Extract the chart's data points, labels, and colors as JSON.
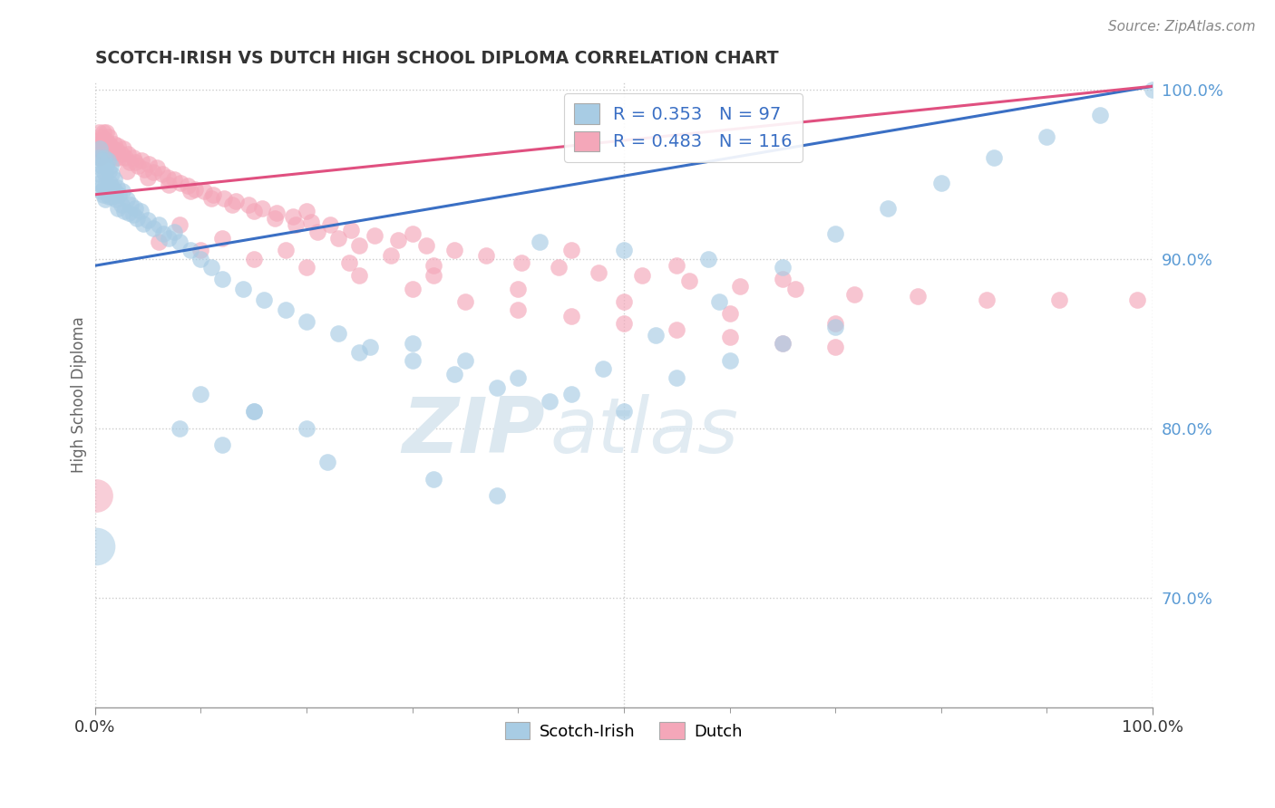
{
  "title": "SCOTCH-IRISH VS DUTCH HIGH SCHOOL DIPLOMA CORRELATION CHART",
  "source": "Source: ZipAtlas.com",
  "ylabel": "High School Diploma",
  "xlim": [
    0,
    1
  ],
  "ylim": [
    0.635,
    1.005
  ],
  "yticks": [
    0.7,
    0.8,
    0.9,
    1.0
  ],
  "ytick_labels": [
    "70.0%",
    "80.0%",
    "90.0%",
    "100.0%"
  ],
  "xtick_labels": [
    "0.0%",
    "100.0%"
  ],
  "legend_blue_R": "R = 0.353",
  "legend_blue_N": "N = 97",
  "legend_pink_R": "R = 0.483",
  "legend_pink_N": "N = 116",
  "legend_blue_label": "Scotch-Irish",
  "legend_pink_label": "Dutch",
  "blue_color": "#a8cce4",
  "pink_color": "#f4a7b9",
  "blue_line_color": "#3a6fc4",
  "pink_line_color": "#e05080",
  "title_color": "#333333",
  "axis_label_color": "#666666",
  "right_tick_color": "#5b9bd5",
  "background_color": "#ffffff",
  "grid_color": "#cccccc",
  "blue_line_start_y": 0.896,
  "blue_line_end_y": 1.002,
  "pink_line_start_y": 0.938,
  "pink_line_end_y": 1.002,
  "si_x": [
    0.003,
    0.004,
    0.005,
    0.005,
    0.006,
    0.006,
    0.007,
    0.007,
    0.008,
    0.008,
    0.009,
    0.009,
    0.01,
    0.01,
    0.011,
    0.011,
    0.012,
    0.012,
    0.013,
    0.013,
    0.014,
    0.015,
    0.015,
    0.016,
    0.016,
    0.017,
    0.018,
    0.019,
    0.02,
    0.021,
    0.022,
    0.023,
    0.025,
    0.026,
    0.028,
    0.03,
    0.032,
    0.034,
    0.036,
    0.038,
    0.04,
    0.043,
    0.046,
    0.05,
    0.055,
    0.06,
    0.065,
    0.07,
    0.075,
    0.08,
    0.09,
    0.1,
    0.11,
    0.12,
    0.14,
    0.16,
    0.18,
    0.2,
    0.23,
    0.26,
    0.3,
    0.34,
    0.38,
    0.43,
    0.48,
    0.53,
    0.59,
    0.65,
    0.7,
    0.75,
    0.8,
    0.85,
    0.9,
    0.95,
    1.0,
    0.1,
    0.15,
    0.2,
    0.25,
    0.3,
    0.35,
    0.4,
    0.45,
    0.5,
    0.55,
    0.6,
    0.65,
    0.7,
    0.12,
    0.22,
    0.32,
    0.38,
    0.15,
    0.08,
    0.42,
    0.5,
    0.58
  ],
  "si_y": [
    0.95,
    0.96,
    0.945,
    0.965,
    0.94,
    0.955,
    0.943,
    0.958,
    0.938,
    0.952,
    0.942,
    0.96,
    0.935,
    0.95,
    0.94,
    0.955,
    0.943,
    0.958,
    0.937,
    0.952,
    0.945,
    0.94,
    0.955,
    0.937,
    0.95,
    0.942,
    0.947,
    0.94,
    0.935,
    0.942,
    0.93,
    0.938,
    0.932,
    0.94,
    0.928,
    0.935,
    0.927,
    0.932,
    0.926,
    0.93,
    0.924,
    0.928,
    0.921,
    0.923,
    0.918,
    0.92,
    0.915,
    0.912,
    0.916,
    0.91,
    0.905,
    0.9,
    0.895,
    0.888,
    0.882,
    0.876,
    0.87,
    0.863,
    0.856,
    0.848,
    0.84,
    0.832,
    0.824,
    0.816,
    0.835,
    0.855,
    0.875,
    0.895,
    0.915,
    0.93,
    0.945,
    0.96,
    0.972,
    0.985,
    1.0,
    0.82,
    0.81,
    0.8,
    0.845,
    0.85,
    0.84,
    0.83,
    0.82,
    0.81,
    0.83,
    0.84,
    0.85,
    0.86,
    0.79,
    0.78,
    0.77,
    0.76,
    0.81,
    0.8,
    0.91,
    0.905,
    0.9
  ],
  "d_x": [
    0.003,
    0.004,
    0.004,
    0.005,
    0.006,
    0.006,
    0.007,
    0.008,
    0.008,
    0.009,
    0.009,
    0.01,
    0.011,
    0.011,
    0.012,
    0.013,
    0.013,
    0.014,
    0.015,
    0.016,
    0.017,
    0.018,
    0.019,
    0.02,
    0.021,
    0.022,
    0.023,
    0.025,
    0.027,
    0.029,
    0.031,
    0.033,
    0.036,
    0.038,
    0.041,
    0.044,
    0.047,
    0.051,
    0.055,
    0.059,
    0.064,
    0.069,
    0.075,
    0.081,
    0.088,
    0.095,
    0.103,
    0.112,
    0.122,
    0.133,
    0.145,
    0.158,
    0.172,
    0.187,
    0.204,
    0.222,
    0.242,
    0.264,
    0.287,
    0.313,
    0.34,
    0.37,
    0.403,
    0.438,
    0.476,
    0.517,
    0.562,
    0.61,
    0.662,
    0.718,
    0.778,
    0.843,
    0.912,
    0.985,
    0.06,
    0.1,
    0.15,
    0.2,
    0.25,
    0.3,
    0.35,
    0.4,
    0.45,
    0.5,
    0.55,
    0.6,
    0.65,
    0.7,
    0.08,
    0.12,
    0.18,
    0.24,
    0.32,
    0.4,
    0.5,
    0.6,
    0.7,
    0.2,
    0.3,
    0.45,
    0.55,
    0.65,
    0.03,
    0.05,
    0.07,
    0.09,
    0.11,
    0.13,
    0.15,
    0.17,
    0.19,
    0.21,
    0.23,
    0.25,
    0.28,
    0.32
  ],
  "d_y": [
    0.965,
    0.97,
    0.975,
    0.96,
    0.968,
    0.972,
    0.963,
    0.97,
    0.975,
    0.962,
    0.968,
    0.965,
    0.97,
    0.975,
    0.962,
    0.968,
    0.972,
    0.963,
    0.967,
    0.963,
    0.965,
    0.968,
    0.963,
    0.96,
    0.964,
    0.967,
    0.96,
    0.962,
    0.965,
    0.96,
    0.962,
    0.957,
    0.96,
    0.957,
    0.955,
    0.958,
    0.953,
    0.956,
    0.951,
    0.954,
    0.95,
    0.948,
    0.947,
    0.945,
    0.943,
    0.941,
    0.94,
    0.938,
    0.936,
    0.934,
    0.932,
    0.93,
    0.927,
    0.925,
    0.922,
    0.92,
    0.917,
    0.914,
    0.911,
    0.908,
    0.905,
    0.902,
    0.898,
    0.895,
    0.892,
    0.89,
    0.887,
    0.884,
    0.882,
    0.879,
    0.878,
    0.876,
    0.876,
    0.876,
    0.91,
    0.905,
    0.9,
    0.895,
    0.89,
    0.882,
    0.875,
    0.87,
    0.866,
    0.862,
    0.858,
    0.854,
    0.85,
    0.848,
    0.92,
    0.912,
    0.905,
    0.898,
    0.89,
    0.882,
    0.875,
    0.868,
    0.862,
    0.928,
    0.915,
    0.905,
    0.896,
    0.888,
    0.952,
    0.948,
    0.944,
    0.94,
    0.936,
    0.932,
    0.928,
    0.924,
    0.92,
    0.916,
    0.912,
    0.908,
    0.902,
    0.896
  ]
}
